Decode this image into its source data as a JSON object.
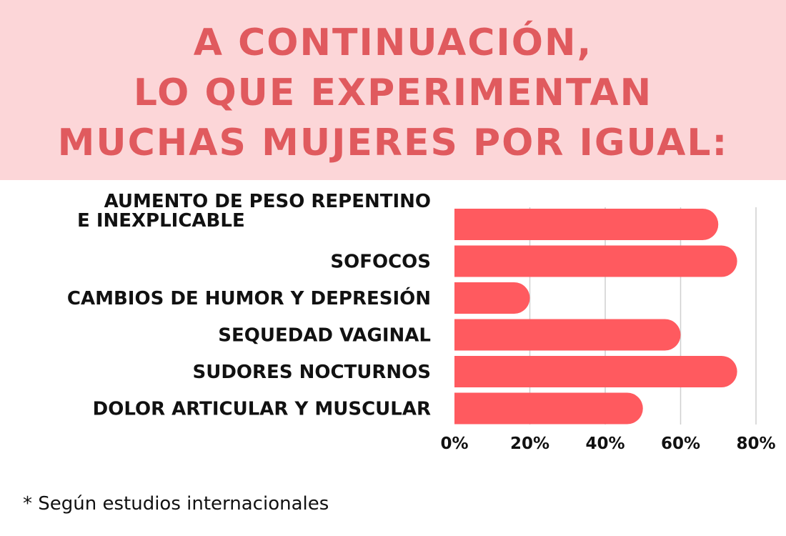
{
  "title": {
    "lines": [
      "A CONTINUACIÓN,",
      "LO QUE EXPERIMENTAN",
      "MUCHAS MUJERES POR IGUAL:"
    ]
  },
  "colors": {
    "header_bg": "#fcd6d8",
    "title_text": "#e05a5e",
    "bar": "#ff5a5f",
    "grid": "#cfcfcf",
    "text": "#111111"
  },
  "chart_data": {
    "type": "bar",
    "orientation": "horizontal",
    "categories": [
      [
        "AUMENTO DE PESO REPENTINO",
        "E INEXPLICABLE"
      ],
      [
        "SOFOCOS"
      ],
      [
        "CAMBIOS DE HUMOR Y DEPRESIÓN"
      ],
      [
        "SEQUEDAD VAGINAL"
      ],
      [
        "SUDORES NOCTURNOS"
      ],
      [
        "DOLOR ARTICULAR Y MUSCULAR"
      ]
    ],
    "values": [
      70,
      75,
      20,
      60,
      75,
      50
    ],
    "xlim": [
      0,
      80
    ],
    "x_ticks": [
      "0%",
      "20%",
      "40%",
      "60%",
      "80%"
    ],
    "grid": "vertical",
    "title": "",
    "xlabel": "",
    "ylabel": ""
  },
  "footnote": "* Según estudios internacionales"
}
